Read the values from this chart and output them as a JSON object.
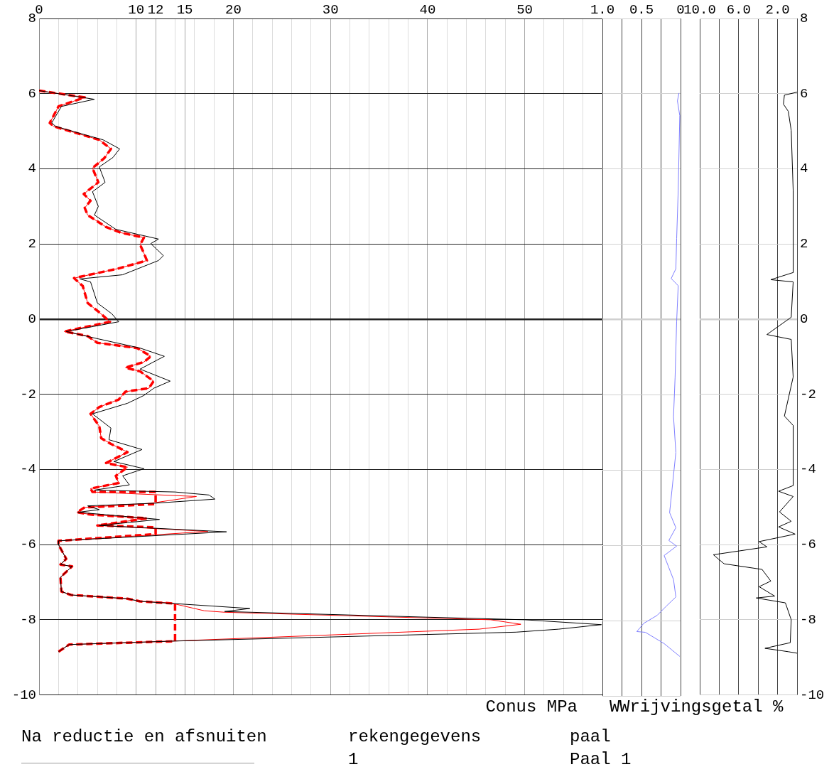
{
  "chart_data": [
    {
      "type": "line",
      "xlabel": "Conus MPa",
      "xlim": [
        0,
        58
      ],
      "xticks": [
        0,
        {
          "value": 2,
          "label": null
        },
        {
          "value": 4,
          "label": null
        },
        {
          "value": 6,
          "label": null
        },
        {
          "value": 8,
          "label": null
        },
        10,
        12,
        {
          "value": 14,
          "label": null
        },
        15,
        {
          "value": 16,
          "label": null
        },
        {
          "value": 18,
          "label": null
        },
        20,
        {
          "value": 22,
          "label": null
        },
        {
          "value": 24,
          "label": null
        },
        {
          "value": 26,
          "label": null
        },
        {
          "value": 28,
          "label": null
        },
        30,
        {
          "value": 32,
          "label": null
        },
        {
          "value": 34,
          "label": null
        },
        {
          "value": 36,
          "label": null
        },
        {
          "value": 38,
          "label": null
        },
        40,
        {
          "value": 42,
          "label": null
        },
        {
          "value": 44,
          "label": null
        },
        {
          "value": 46,
          "label": null
        },
        {
          "value": 48,
          "label": null
        },
        50,
        {
          "value": 52,
          "label": null
        },
        {
          "value": 54,
          "label": null
        },
        {
          "value": 56,
          "label": null
        }
      ],
      "ylim": [
        -10,
        8
      ],
      "yticks": [
        -10,
        -8,
        -6,
        -4,
        -2,
        0,
        2,
        4,
        6,
        8
      ],
      "grid": true,
      "annotations": [
        "Na reductie en afsnuiten",
        "rekengegevens",
        "1",
        "paal",
        "Paal 1"
      ],
      "series": [
        {
          "color": "#000000",
          "x": [
            0,
            5.7,
            2.3,
            1.3,
            1.7,
            4.8,
            6.6,
            8.3,
            7.6,
            6.2,
            6.8,
            5.5,
            6.1,
            5.7,
            7.9,
            12.3,
            11.5,
            12.8,
            12.3,
            8.6,
            4.2,
            5.3,
            6.0,
            7.5,
            8.2,
            2.8,
            6.0,
            10.4,
            12.9,
            12.0,
            10.4,
            13.5,
            11.8,
            10.8,
            9.1,
            5.5,
            7.4,
            7.2,
            10.6,
            7.7,
            10.8,
            8.6,
            9.3,
            5.7,
            14.0,
            17.5,
            18.1,
            11.8,
            5.0,
            6.2,
            4.0,
            12.4,
            6.2,
            19.3,
            2.0,
            2.0,
            2.8,
            2.2,
            3.4,
            2.2,
            2.3,
            3.3,
            9.1,
            10.4,
            21.7,
            19.1,
            39.8,
            50,
            57.9,
            53.5,
            49.1,
            13.5,
            3.1,
            2.0
          ],
          "values": [
            6.08,
            5.85,
            5.66,
            5.22,
            5.13,
            4.9,
            4.77,
            4.53,
            4.3,
            4.05,
            3.64,
            3.39,
            3.0,
            2.77,
            2.39,
            2.13,
            2.01,
            1.69,
            1.56,
            1.18,
            1.07,
            0.99,
            0.43,
            0.14,
            -0.07,
            -0.33,
            -0.52,
            -0.77,
            -0.99,
            -1.11,
            -1.33,
            -1.65,
            -1.84,
            -2.03,
            -2.24,
            -2.52,
            -2.9,
            -3.21,
            -3.47,
            -3.79,
            -3.98,
            -4.17,
            -4.41,
            -4.55,
            -4.6,
            -4.68,
            -4.79,
            -4.9,
            -4.97,
            -5.07,
            -5.14,
            -5.33,
            -5.49,
            -5.66,
            -5.9,
            -6.0,
            -6.38,
            -6.53,
            -6.58,
            -6.87,
            -7.25,
            -7.34,
            -7.44,
            -7.51,
            -7.7,
            -7.78,
            -7.93,
            -8.0,
            -8.13,
            -8.25,
            -8.33,
            -8.57,
            -8.66,
            -8.85
          ]
        },
        {
          "color": "#ff0000",
          "x": [
            0,
            4.7,
            2.0,
            1.1,
            1.5,
            4.5,
            6.2,
            7.4,
            6.7,
            5.5,
            6.1,
            4.6,
            5.3,
            4.7,
            5.0,
            6.9,
            8.4,
            10.8,
            10.4,
            10.8,
            11.1,
            8.2,
            3.6,
            4.5,
            5.0,
            6.2,
            7.3,
            2.6,
            5.0,
            6.0,
            10.1,
            11.5,
            10.8,
            8.9,
            10.4,
            11.8,
            11.3,
            8.9,
            8.2,
            6.2,
            5.3,
            6.2,
            6.4,
            7.4,
            9.1,
            6.9,
            9.1,
            7.9,
            8.2,
            5.3,
            5.5,
            16.2,
            11.5,
            4.7,
            3.9,
            5.3,
            11.1,
            6.0,
            17.4,
            2.0,
            2.0,
            2.8,
            2.2,
            3.4,
            2.2,
            2.3,
            3.3,
            9.1,
            10.4,
            13.5,
            17.0,
            19.1,
            46.5,
            49.6,
            45.3,
            13.5,
            3.1,
            2.0
          ],
          "values": [
            6.08,
            5.9,
            5.66,
            5.22,
            5.13,
            4.9,
            4.77,
            4.53,
            4.28,
            4.02,
            3.64,
            3.33,
            3.15,
            2.96,
            2.77,
            2.45,
            2.3,
            2.17,
            1.98,
            1.75,
            1.56,
            1.35,
            1.09,
            0.88,
            0.43,
            0.18,
            -0.07,
            -0.33,
            -0.45,
            -0.63,
            -0.77,
            -0.99,
            -1.14,
            -1.29,
            -1.39,
            -1.65,
            -1.84,
            -1.93,
            -2.14,
            -2.34,
            -2.52,
            -2.85,
            -3.17,
            -3.32,
            -3.54,
            -3.83,
            -3.94,
            -4.17,
            -4.36,
            -4.51,
            -4.6,
            -4.72,
            -4.9,
            -5.01,
            -5.14,
            -5.2,
            -5.3,
            -5.49,
            -5.65,
            -5.9,
            -6.0,
            -6.38,
            -6.53,
            -6.58,
            -6.87,
            -7.25,
            -7.34,
            -7.44,
            -7.51,
            -7.55,
            -7.76,
            -7.8,
            -8.0,
            -8.12,
            -8.25,
            -8.57,
            -8.66,
            -8.85
          ]
        },
        {
          "color": "#ff0000",
          "line_style": "dashed",
          "x": [
            0,
            4.7,
            2.0,
            1.1,
            1.5,
            4.5,
            6.2,
            7.4,
            6.7,
            5.5,
            6.1,
            4.6,
            5.3,
            4.7,
            5.0,
            6.9,
            8.4,
            10.8,
            10.4,
            10.8,
            11.1,
            8.2,
            3.6,
            4.5,
            5.0,
            6.2,
            7.3,
            2.6,
            5.0,
            6.0,
            10.1,
            11.5,
            10.8,
            8.9,
            10.4,
            11.8,
            11.3,
            8.9,
            8.2,
            6.2,
            5.3,
            6.2,
            6.4,
            7.4,
            9.1,
            6.9,
            9.1,
            7.9,
            8.2,
            5.3,
            5.5,
            12.0,
            12.0,
            4.7,
            3.9,
            5.3,
            11.1,
            6.0,
            12.0,
            12.0,
            2.0,
            2.0,
            2.8,
            2.2,
            3.4,
            2.2,
            2.3,
            3.3,
            9.1,
            10.4,
            14.0,
            14.0,
            3.1,
            2.0
          ],
          "values": [
            6.08,
            5.9,
            5.66,
            5.22,
            5.13,
            4.9,
            4.77,
            4.53,
            4.28,
            4.02,
            3.64,
            3.33,
            3.15,
            2.96,
            2.77,
            2.45,
            2.3,
            2.17,
            1.98,
            1.75,
            1.56,
            1.35,
            1.09,
            0.88,
            0.43,
            0.18,
            -0.07,
            -0.33,
            -0.45,
            -0.63,
            -0.77,
            -0.99,
            -1.14,
            -1.29,
            -1.39,
            -1.65,
            -1.84,
            -1.93,
            -2.14,
            -2.34,
            -2.52,
            -2.85,
            -3.17,
            -3.32,
            -3.54,
            -3.83,
            -3.94,
            -4.17,
            -4.36,
            -4.51,
            -4.6,
            -4.6,
            -4.92,
            -5.01,
            -5.14,
            -5.2,
            -5.3,
            -5.49,
            -5.54,
            -5.72,
            -5.9,
            -6.0,
            -6.38,
            -6.53,
            -6.58,
            -6.87,
            -7.25,
            -7.34,
            -7.44,
            -7.51,
            -7.57,
            -8.57,
            -8.66,
            -8.85
          ]
        }
      ]
    },
    {
      "type": "line",
      "xlabel": "W",
      "xlim": [
        1,
        0
      ],
      "xticks": [
        {
          "value": 1,
          "label": "1.0"
        },
        {
          "value": 0.75,
          "label": null
        },
        0.5,
        {
          "value": 0.25,
          "label": null
        },
        0
      ],
      "ylim": [
        -10,
        8
      ],
      "yticks": [
        -10,
        -8,
        -6,
        -4,
        -2,
        0,
        2,
        4,
        6,
        8
      ],
      "grid": true,
      "tick_labels": "x",
      "series": [
        {
          "color": "#8080ff",
          "x": [
            0.02,
            0.04,
            0.01,
            0.03,
            0.05,
            0.06,
            0.12,
            0.03,
            0.05,
            0.07,
            0.09,
            0.06,
            0.11,
            0.14,
            0.06,
            0.15,
            0.05,
            0.21,
            0.09,
            0.06,
            0.18,
            0.3,
            0.47,
            0.56,
            0.45,
            0.21,
            0.01
          ],
          "values": [
            6.02,
            5.81,
            5.42,
            3.43,
            2.15,
            1.35,
            1.09,
            0.9,
            -0.05,
            -1.54,
            -2.58,
            -3.53,
            -4.53,
            -5.13,
            -5.53,
            -5.87,
            -6.02,
            -6.27,
            -6.91,
            -7.37,
            -7.61,
            -7.86,
            -8.07,
            -8.29,
            -8.31,
            -8.61,
            -8.95
          ]
        }
      ]
    },
    {
      "type": "line",
      "xlabel": "Wrijvingsgetal %",
      "xlim": [
        10,
        0
      ],
      "xticks": [
        {
          "value": 10,
          "label": "10.0"
        },
        {
          "value": 8,
          "label": null
        },
        {
          "value": 6,
          "label": "6.0"
        },
        {
          "value": 4,
          "label": null
        },
        {
          "value": 2,
          "label": "2.0"
        },
        {
          "value": 0,
          "label": null
        }
      ],
      "ylim": [
        -10,
        8
      ],
      "yticks": [
        -10,
        -8,
        -6,
        -4,
        -2,
        0,
        2,
        4,
        6,
        8
      ],
      "grid": true,
      "series": [
        {
          "color": "#000000",
          "x": [
            0.0,
            1.3,
            1.4,
            0.9,
            0.6,
            0.4,
            0.4,
            2.7,
            0.4,
            0.6,
            3.1,
            0.6,
            0.4,
            1.3,
            0.4,
            0.4,
            1.9,
            0.4,
            1.8,
            0.6,
            1.9,
            0.2,
            3.9,
            3.1,
            8.6,
            7.5,
            3.6,
            2.7,
            3.9,
            2.3,
            4.2,
            1.2,
            0.6,
            0.7,
            3.3,
            0.9,
            0.0
          ],
          "values": [
            6.04,
            5.96,
            5.72,
            5.53,
            5.02,
            3.43,
            1.24,
            1.05,
            0.99,
            0.05,
            -0.41,
            -0.54,
            -1.54,
            -2.58,
            -2.83,
            -4.43,
            -4.58,
            -4.72,
            -5.13,
            -5.38,
            -5.53,
            -5.72,
            -5.92,
            -6.06,
            -6.27,
            -6.51,
            -6.66,
            -6.97,
            -7.12,
            -7.37,
            -7.42,
            -7.55,
            -8.0,
            -8.61,
            -8.76,
            -8.85,
            -8.89
          ]
        }
      ]
    }
  ]
}
